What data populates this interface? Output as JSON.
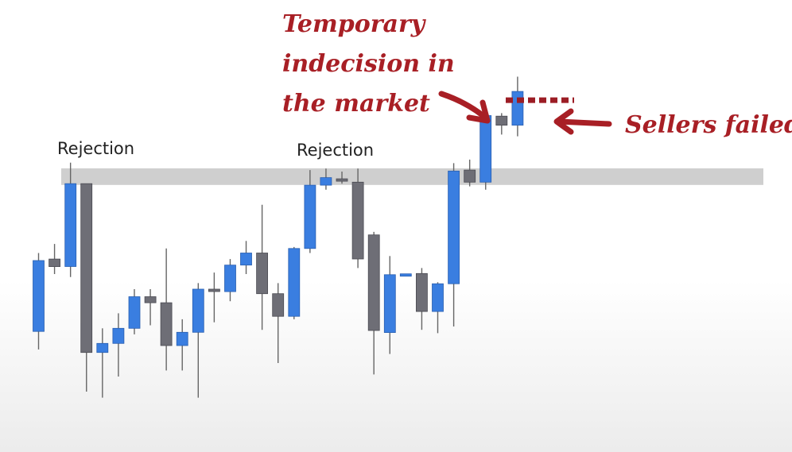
{
  "chart_data": {
    "type": "candlestick",
    "title": "",
    "xlabel": "",
    "ylabel": "",
    "colors": {
      "up": "#3a7ee0",
      "down": "#6e6e76",
      "zone": "#c8c8c8",
      "annotation": "#a81f25"
    },
    "price_range": [
      0,
      100
    ],
    "resistance_zone": [
      68.6,
      74.1
    ],
    "candles": [
      {
        "dir": "up",
        "open": 20,
        "close": 43.5,
        "high": 46,
        "low": 14
      },
      {
        "dir": "down",
        "open": 44,
        "close": 41.5,
        "high": 49,
        "low": 39
      },
      {
        "dir": "up",
        "open": 41.5,
        "close": 69,
        "high": 76,
        "low": 38
      },
      {
        "dir": "down",
        "open": 69,
        "close": 13,
        "high": 69,
        "low": 0
      },
      {
        "dir": "up",
        "open": 13,
        "close": 16,
        "high": 21,
        "low": -2
      },
      {
        "dir": "up",
        "open": 16,
        "close": 21,
        "high": 26,
        "low": 5
      },
      {
        "dir": "up",
        "open": 21,
        "close": 31.5,
        "high": 34,
        "low": 19
      },
      {
        "dir": "down",
        "open": 31.5,
        "close": 29.5,
        "high": 34,
        "low": 22
      },
      {
        "dir": "down",
        "open": 29.5,
        "close": 15.3,
        "high": 47.5,
        "low": 7
      },
      {
        "dir": "up",
        "open": 15.3,
        "close": 19.7,
        "high": 24,
        "low": 7
      },
      {
        "dir": "up",
        "open": 19.7,
        "close": 34,
        "high": 36,
        "low": -2
      },
      {
        "dir": "down",
        "open": 34,
        "close": 33.2,
        "high": 39.5,
        "low": 23
      },
      {
        "dir": "up",
        "open": 33.2,
        "close": 42,
        "high": 44,
        "low": 30
      },
      {
        "dir": "up",
        "open": 42,
        "close": 46,
        "high": 50,
        "low": 39
      },
      {
        "dir": "down",
        "open": 46,
        "close": 32.5,
        "high": 62,
        "low": 20.5
      },
      {
        "dir": "down",
        "open": 32.5,
        "close": 25,
        "high": 36,
        "low": 9.5
      },
      {
        "dir": "up",
        "open": 25,
        "close": 47.5,
        "high": 48,
        "low": 24
      },
      {
        "dir": "up",
        "open": 47.5,
        "close": 68.5,
        "high": 73.5,
        "low": 46
      },
      {
        "dir": "up",
        "open": 68.5,
        "close": 71,
        "high": 74,
        "low": 67
      },
      {
        "dir": "down",
        "open": 70.6,
        "close": 70,
        "high": 73,
        "low": 69
      },
      {
        "dir": "down",
        "open": 69.5,
        "close": 44,
        "high": 74,
        "low": 41
      },
      {
        "dir": "down",
        "open": 52,
        "close": 20.3,
        "high": 53,
        "low": 5.7
      },
      {
        "dir": "up",
        "open": 19.6,
        "close": 38.8,
        "high": 45,
        "low": 12.5
      },
      {
        "dir": "up",
        "open": 38.3,
        "close": 39.1,
        "high": 39.1,
        "low": 38.3
      },
      {
        "dir": "down",
        "open": 39.2,
        "close": 26.6,
        "high": 41,
        "low": 20.5
      },
      {
        "dir": "up",
        "open": 26.6,
        "close": 35.8,
        "high": 36.3,
        "low": 19.4
      },
      {
        "dir": "up",
        "open": 35.8,
        "close": 73.2,
        "high": 75.8,
        "low": 21.6
      },
      {
        "dir": "down",
        "open": 73.5,
        "close": 69.5,
        "high": 77,
        "low": 68.1
      },
      {
        "dir": "up",
        "open": 69.5,
        "close": 91.6,
        "high": 94,
        "low": 67
      },
      {
        "dir": "down",
        "open": 91.4,
        "close": 88.4,
        "high": 92.4,
        "low": 85.3
      },
      {
        "dir": "up",
        "open": 88.4,
        "close": 99.6,
        "high": 104.5,
        "low": 84.7
      }
    ],
    "annotations": [
      {
        "text": "Rejection"
      },
      {
        "text": "Rejection"
      },
      {
        "lines": [
          "Temporary",
          "indecision in",
          "the market"
        ]
      },
      {
        "text": "Sellers failed"
      }
    ]
  }
}
